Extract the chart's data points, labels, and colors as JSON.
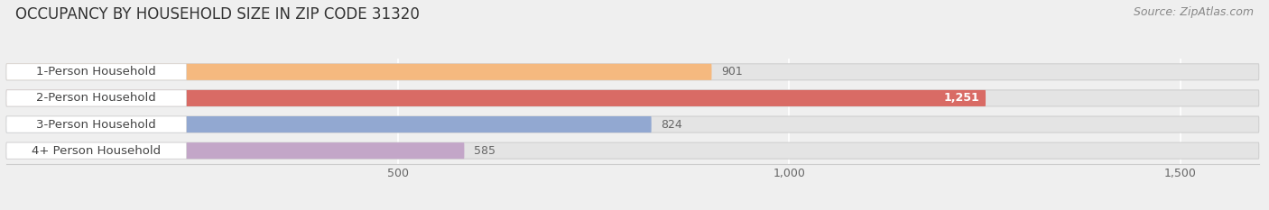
{
  "categories": [
    "1-Person Household",
    "2-Person Household",
    "3-Person Household",
    "4+ Person Household"
  ],
  "values": [
    901,
    1251,
    824,
    585
  ],
  "bar_colors": [
    "#f5b97f",
    "#d96b65",
    "#92a8d1",
    "#c3a6c8"
  ],
  "value_inside": [
    false,
    true,
    false,
    false
  ],
  "title": "OCCUPANCY BY HOUSEHOLD SIZE IN ZIP CODE 31320",
  "source": "Source: ZipAtlas.com",
  "xlim_max": 1600,
  "xticks": [
    500,
    1000,
    1500
  ],
  "xticklabels": [
    "500",
    "1,000",
    "1,500"
  ],
  "title_fontsize": 12,
  "source_fontsize": 9,
  "label_fontsize": 9.5,
  "value_fontsize": 9,
  "tick_fontsize": 9,
  "bar_height": 0.62,
  "background_color": "#efefef",
  "bar_bg_color": "#e4e4e4",
  "label_bg_color": "#ffffff",
  "label_text_color": "#444444",
  "value_outside_color": "#666666",
  "value_inside_color": "#ffffff",
  "grid_color": "#ffffff",
  "spine_color": "#cccccc"
}
